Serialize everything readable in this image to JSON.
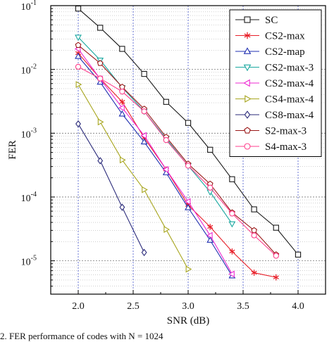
{
  "caption": "2.    FER performance of codes with N = 1024",
  "chart_data": {
    "type": "line",
    "xlabel": "SNR (dB)",
    "ylabel": "FER",
    "xlim": [
      1.75,
      4.25
    ],
    "ylim": [
      3e-06,
      0.1
    ],
    "y_scale": "log",
    "x_ticks": [
      2.0,
      2.5,
      3.0,
      3.5,
      4.0
    ],
    "x_tick_labels": [
      "2.0",
      "2.5",
      "3.0",
      "3.5",
      "4.0"
    ],
    "y_ticks": [
      0.1,
      0.01,
      0.001,
      0.0001,
      1e-05
    ],
    "y_tick_labels": [
      {
        "base": "10",
        "exp": "-1"
      },
      {
        "base": "10",
        "exp": "-2"
      },
      {
        "base": "10",
        "exp": "-3"
      },
      {
        "base": "10",
        "exp": "-4"
      },
      {
        "base": "10",
        "exp": "-5"
      }
    ],
    "grid": true,
    "grid_style": "dotted",
    "legend_position": "top-right",
    "series": [
      {
        "name": "SC",
        "color": "#1a1a1a",
        "marker": "square",
        "x": [
          2.0,
          2.2,
          2.4,
          2.6,
          2.8,
          3.0,
          3.2,
          3.4,
          3.6,
          3.8,
          4.0
        ],
        "y": [
          0.09,
          0.045,
          0.021,
          0.0085,
          0.0031,
          0.00145,
          0.00055,
          0.00019,
          6.4e-05,
          3.3e-05,
          1.25e-05
        ]
      },
      {
        "name": "CS2-max",
        "color": "#e8202a",
        "marker": "star",
        "x": [
          2.0,
          2.2,
          2.4,
          2.6,
          2.8,
          3.0,
          3.2,
          3.4,
          3.6,
          3.8
        ],
        "y": [
          0.018,
          0.0072,
          0.0031,
          0.00085,
          0.00027,
          7.5e-05,
          3.4e-05,
          1.4e-05,
          6.5e-06,
          5.5e-06
        ]
      },
      {
        "name": "CS2-map",
        "color": "#1f2fb0",
        "marker": "triangle-up",
        "x": [
          2.0,
          2.2,
          2.4,
          2.6,
          2.8,
          3.0,
          3.2,
          3.4
        ],
        "y": [
          0.016,
          0.0063,
          0.002,
          0.00073,
          0.00024,
          6.8e-05,
          2.1e-05,
          5.8e-06
        ]
      },
      {
        "name": "CS2-max-3",
        "color": "#1aa8a0",
        "marker": "triangle-down",
        "x": [
          2.0,
          2.2,
          2.4,
          2.6,
          2.8,
          3.0,
          3.2,
          3.4
        ],
        "y": [
          0.032,
          0.014,
          0.0052,
          0.0022,
          0.00082,
          0.00031,
          0.00012,
          3.8e-05
        ]
      },
      {
        "name": "CS2-max-4",
        "color": "#ee2ad2",
        "marker": "triangle-left",
        "x": [
          2.0,
          2.2,
          2.4,
          2.6,
          2.8,
          3.0,
          3.2,
          3.4
        ],
        "y": [
          0.021,
          0.0071,
          0.0025,
          0.00092,
          0.00027,
          8.5e-05,
          2.5e-05,
          6.2e-06
        ]
      },
      {
        "name": "CS4-max-4",
        "color": "#a8a620",
        "marker": "triangle-right",
        "x": [
          2.0,
          2.2,
          2.4,
          2.6,
          2.8,
          3.0
        ],
        "y": [
          0.0058,
          0.0015,
          0.00038,
          0.00013,
          3.1e-05,
          7.4e-06
        ]
      },
      {
        "name": "CS8-max-4",
        "color": "#2a2a7a",
        "marker": "diamond",
        "x": [
          2.0,
          2.2,
          2.4,
          2.6
        ],
        "y": [
          0.0014,
          0.00037,
          6.9e-05,
          1.35e-05
        ]
      },
      {
        "name": "S2-max-3",
        "color": "#9a1818",
        "marker": "pentagon",
        "x": [
          2.0,
          2.2,
          2.4,
          2.6,
          2.8,
          3.0,
          3.2,
          3.4,
          3.6,
          3.8
        ],
        "y": [
          0.024,
          0.0125,
          0.0053,
          0.0024,
          0.00087,
          0.00033,
          0.00016,
          5.7e-05,
          3e-05,
          1.25e-05
        ]
      },
      {
        "name": "S4-max-3",
        "color": "#ff3f8c",
        "marker": "circle",
        "x": [
          2.0,
          2.2,
          2.4,
          2.6,
          2.8,
          3.0,
          3.2,
          3.4,
          3.6,
          3.8
        ],
        "y": [
          0.011,
          0.0072,
          0.0045,
          0.0022,
          0.00078,
          0.00031,
          0.00014,
          5.5e-05,
          2.5e-05,
          1.2e-05
        ]
      }
    ]
  }
}
